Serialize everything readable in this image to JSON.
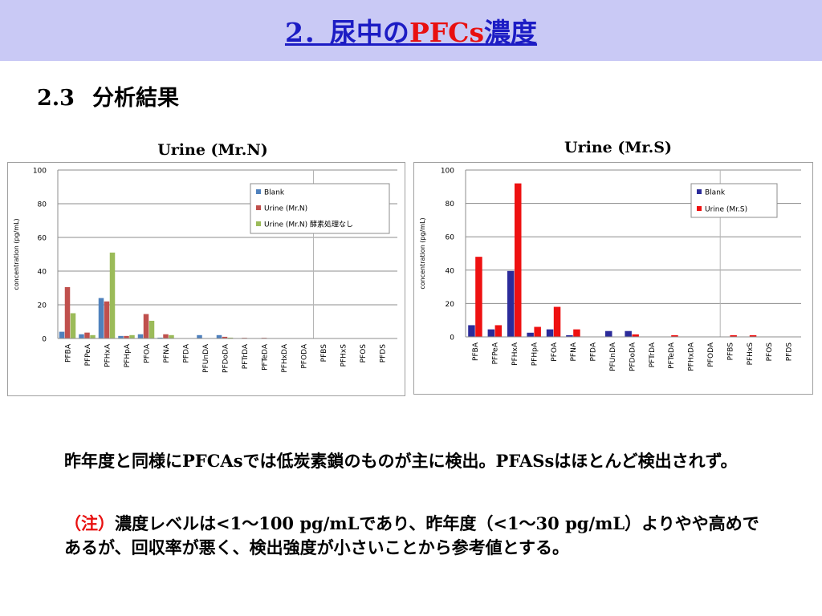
{
  "header": {
    "title_prefix": "2．尿中の",
    "title_red": "PFCs",
    "title_suffix": "濃度"
  },
  "section": {
    "number": "2.3",
    "label": "分析結果"
  },
  "colors": {
    "blank_left": "#4f81bd",
    "urine_left": "#c0504d",
    "enzyme_left": "#9bbb59",
    "blank_right": "#2b2b9a",
    "urine_right": "#ee1111"
  },
  "chart_data": [
    {
      "type": "bar",
      "title": "Urine (Mr.N)",
      "ylabel": "concentration (pg/mL)",
      "xlabel": "",
      "ylim": [
        0,
        100
      ],
      "yticks": [
        "0",
        "20",
        "40",
        "60",
        "80",
        "100"
      ],
      "grid": true,
      "legend_position": "top-right",
      "categories": [
        "PFBA",
        "PFPeA",
        "PFHxA",
        "PFHpA",
        "PFOA",
        "PFNA",
        "PFDA",
        "PFUnDA",
        "PFDoDA",
        "PFTrDA",
        "PFTeDA",
        "PFHxDA",
        "PFODA",
        "PFBS",
        "PFHxS",
        "PFOS",
        "PFDS"
      ],
      "series": [
        {
          "name": "Blank",
          "values": [
            4,
            2.5,
            24,
            1.5,
            2.5,
            0.5,
            0,
            2,
            2,
            0,
            0,
            0,
            0,
            0,
            0,
            0,
            0
          ]
        },
        {
          "name": "Urine (Mr.N)",
          "values": [
            30.5,
            3.5,
            22,
            1.5,
            14.5,
            2.5,
            0,
            0,
            1,
            0.4,
            0.4,
            0,
            0,
            0,
            0,
            0,
            0
          ]
        },
        {
          "name": "Urine (Mr.N)  酵素処理なし",
          "values": [
            15,
            2,
            51,
            2,
            10.5,
            2,
            0,
            0,
            0.5,
            0,
            0,
            0,
            0,
            0,
            0,
            0,
            0
          ]
        }
      ]
    },
    {
      "type": "bar",
      "title": "Urine (Mr.S)",
      "ylabel": "concentration (pg/mL)",
      "xlabel": "",
      "ylim": [
        0,
        100
      ],
      "yticks": [
        "0",
        "20",
        "40",
        "60",
        "80",
        "100"
      ],
      "grid": true,
      "legend_position": "top-right",
      "categories": [
        "PFBA",
        "PFPeA",
        "PFHxA",
        "PFHpA",
        "PFOA",
        "PFNA",
        "PFDA",
        "PFUnDA",
        "PFDoDA",
        "PFTrDA",
        "PFTeDA",
        "PFHxDA",
        "PFODA",
        "PFBS",
        "PFHxS",
        "PFOS",
        "PFDS"
      ],
      "series": [
        {
          "name": "Blank",
          "values": [
            7,
            4.5,
            39.5,
            2.5,
            4.5,
            1,
            0,
            3.5,
            3.5,
            0,
            0,
            0,
            0,
            0,
            0,
            0,
            0
          ]
        },
        {
          "name": "Urine (Mr.S)",
          "values": [
            48,
            7,
            92,
            6,
            18,
            4.5,
            0,
            0,
            1.5,
            0,
            1,
            0,
            0,
            1,
            1,
            0,
            0
          ]
        }
      ]
    }
  ],
  "text": {
    "line1_a": "昨年度と同様に",
    "line1_b": "PFCAs",
    "line1_c": "では低炭素鎖のものが主に検出。",
    "line1_d": "PFASs",
    "line1_e": "はほとんど検出されず。",
    "note_label": "（注）",
    "note_a": "濃度レベルは",
    "note_b": "<1～100 pg/mL",
    "note_c": "であり、昨年度（",
    "note_d": "<1～30 pg/mL",
    "note_e": "）よりやや高めであるが、回収率が悪く、検出強度が小さいことから参考値とする。"
  }
}
